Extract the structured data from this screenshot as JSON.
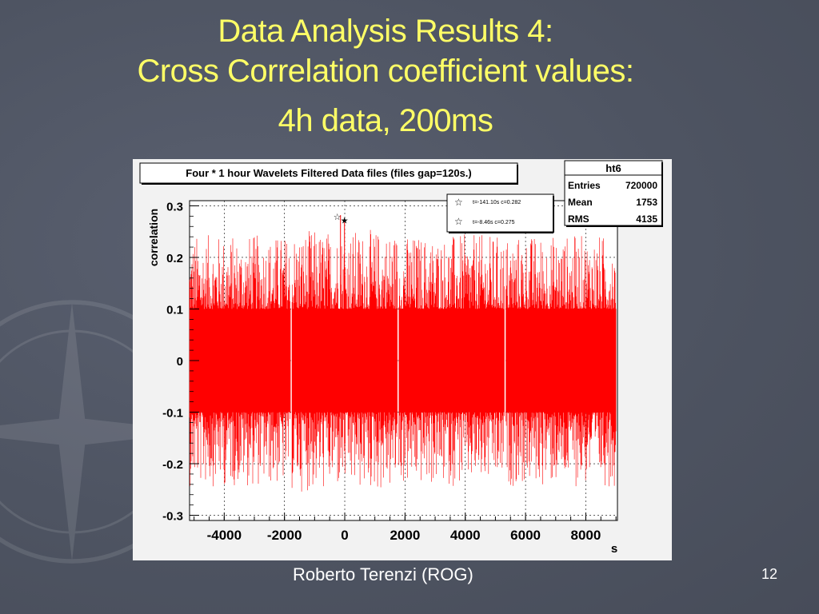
{
  "slide": {
    "title_line1": "Data Analysis Results 4:",
    "title_line2": "Cross Correlation coefficient values:",
    "title_line3": "4h data, 200ms",
    "footer": "Roberto Terenzi (ROG)",
    "page_number": "12"
  },
  "colors": {
    "title": "#ffff66",
    "series": "#ff0000",
    "background": "#4e5462"
  },
  "chart_data": {
    "type": "area",
    "title": "Four * 1 hour Wavelets Filtered Data files (files gap=120s.)",
    "xlabel": "s",
    "ylabel": "correlation",
    "xlim": [
      -5150,
      9050
    ],
    "ylim": [
      -0.31,
      0.31
    ],
    "xticks": [
      -4000,
      -2000,
      0,
      2000,
      4000,
      6000,
      8000
    ],
    "yticks": [
      0.3,
      0.2,
      0.1,
      0,
      -0.1,
      -0.2,
      -0.3
    ],
    "grid": true,
    "series": [
      {
        "segments": [
          {
            "x_start": -5150,
            "x_end": -1800,
            "core_amplitude": 0.1,
            "max_amplitude": 0.27
          },
          {
            "x_start": -1750,
            "x_end": 1750,
            "core_amplitude": 0.1,
            "max_amplitude": 0.282
          },
          {
            "x_start": 1800,
            "x_end": 5300,
            "core_amplitude": 0.1,
            "max_amplitude": 0.27
          },
          {
            "x_start": 5350,
            "x_end": 9000,
            "core_amplitude": 0.1,
            "max_amplitude": 0.27
          }
        ]
      }
    ],
    "stats_box": {
      "name": "ht6",
      "rows": [
        {
          "label": "Entries",
          "value": "720000"
        },
        {
          "label": "Mean",
          "value": "1753"
        },
        {
          "label": "RMS",
          "value": "4135"
        }
      ]
    },
    "markers": [
      {
        "x": -141.1,
        "y": 0.282,
        "label": "t=-141.10s c=0.282"
      },
      {
        "x": -8.46,
        "y": 0.275,
        "label": "t=-8.46s c=0.275"
      }
    ]
  }
}
